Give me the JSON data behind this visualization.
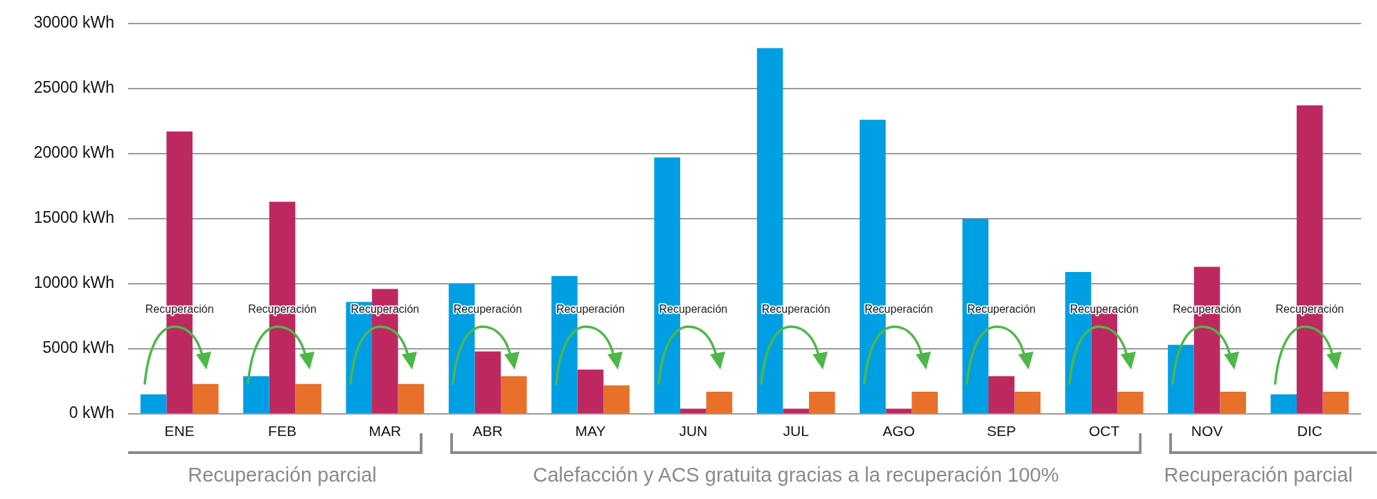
{
  "chart_data": {
    "type": "bar",
    "categories": [
      "ENE",
      "FEB",
      "MAR",
      "ABR",
      "MAY",
      "JUN",
      "JUL",
      "AGO",
      "SEP",
      "OCT",
      "NOV",
      "DIC"
    ],
    "series": [
      {
        "color": "#009fe3",
        "values": [
          1500,
          2900,
          8600,
          10000,
          10600,
          19700,
          28100,
          22600,
          15000,
          10900,
          5300,
          1500
        ]
      },
      {
        "color": "#be2860",
        "values": [
          21700,
          16300,
          9600,
          4800,
          3400,
          400,
          400,
          400,
          2900,
          8200,
          11300,
          23700
        ]
      },
      {
        "color": "#e8702a",
        "values": [
          2300,
          2300,
          2300,
          2900,
          2200,
          1700,
          1700,
          1700,
          1700,
          1700,
          1700,
          1700
        ]
      }
    ],
    "ylim": [
      0,
      30000
    ],
    "yticks": [
      {
        "value": 0,
        "label": "0 kWh"
      },
      {
        "value": 5000,
        "label": "5000 kWh"
      },
      {
        "value": 10000,
        "label": "10000 kWh"
      },
      {
        "value": 15000,
        "label": "15000 kWh"
      },
      {
        "value": 20000,
        "label": "20000 kWh"
      },
      {
        "value": 25000,
        "label": "25000 kWh"
      },
      {
        "value": 30000,
        "label": "30000 kWh"
      }
    ],
    "grid": "y",
    "legend": false,
    "annotations": [
      "Recuperación",
      "Recuperación",
      "Recuperación",
      "Recuperación",
      "Recuperación",
      "Recuperación",
      "Recuperación",
      "Recuperación",
      "Recuperación",
      "Recuperación",
      "Recuperación",
      "Recuperación",
      "Recuperación parcial",
      "Calefacción y ACS gratuita gracias a la recuperación 100%",
      "Recuperación parcial"
    ]
  }
}
